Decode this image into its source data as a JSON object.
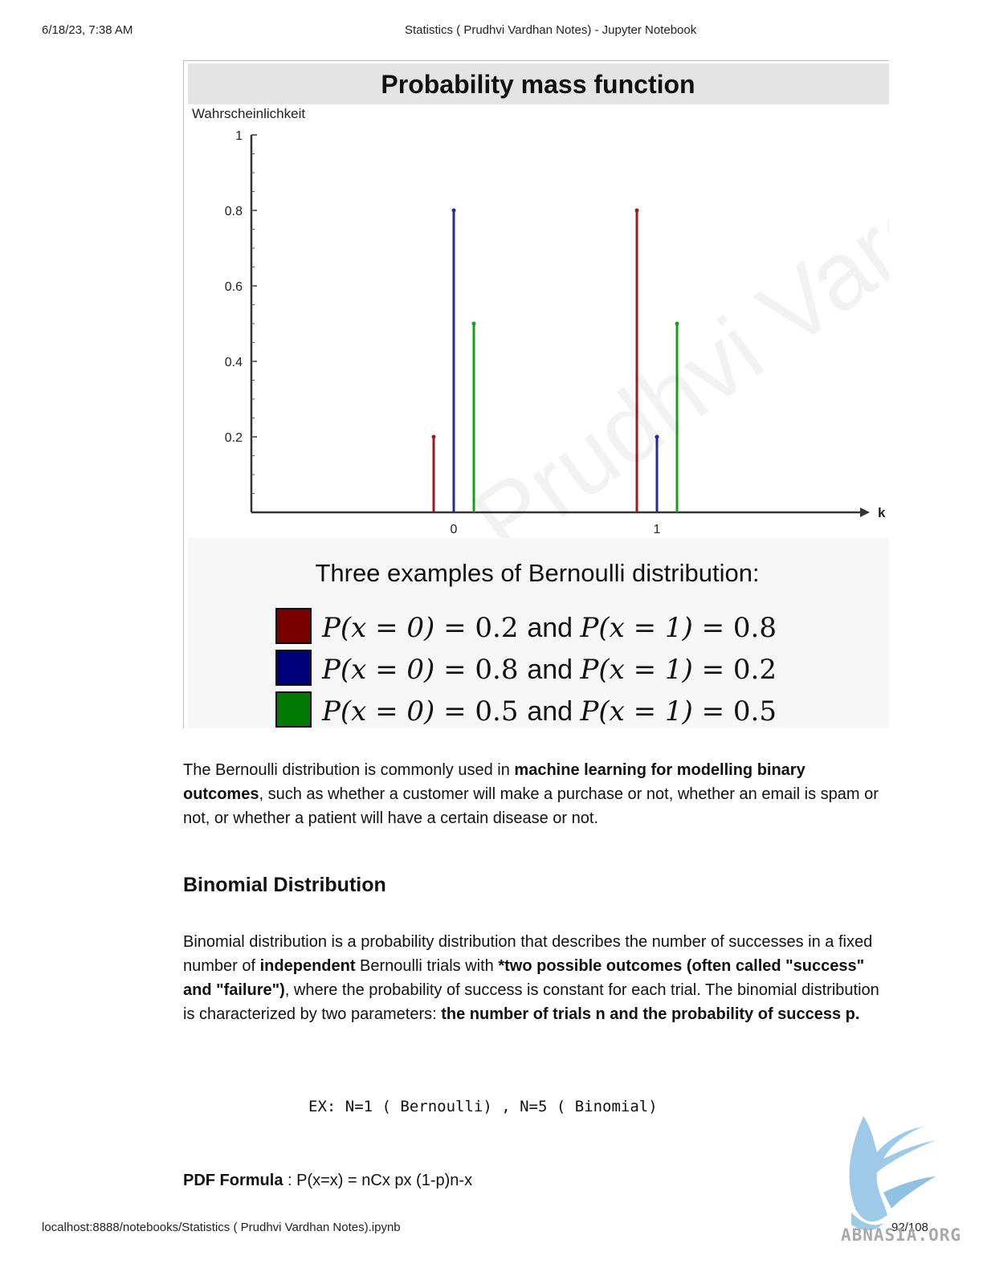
{
  "header": {
    "datetime": "6/18/23, 7:38 AM",
    "title": "Statistics ( Prudhvi Vardhan Notes) - Jupyter Notebook"
  },
  "footer": {
    "url": "localhost:8888/notebooks/Statistics ( Prudhvi Vardhan Notes).ipynb",
    "page": "92/108"
  },
  "figure": {
    "title": "Probability mass function",
    "ylabel": "Wahrscheinlichkeit",
    "xlabel": "k",
    "legend_title": "Three examples of Bernoulli distribution:",
    "legend": [
      {
        "color": "#7a0000",
        "p0": "0.2",
        "p1": "0.8"
      },
      {
        "color": "#00007a",
        "p0": "0.8",
        "p1": "0.2"
      },
      {
        "color": "#007a00",
        "p0": "0.5",
        "p1": "0.5"
      }
    ],
    "math_lhs": "P(x = 0) =",
    "math_mid": "P(x = 1) =",
    "and_word": "and",
    "watermark_text": "Prudhvi Vardhan"
  },
  "chart_data": {
    "type": "bar",
    "title": "Probability mass function",
    "ylabel": "Wahrscheinlichkeit",
    "xlabel": "k",
    "categories": [
      "0",
      "1"
    ],
    "ylim": [
      0,
      1
    ],
    "yticks": [
      "0.2",
      "0.4",
      "0.6",
      "0.8",
      "1"
    ],
    "series": [
      {
        "color": "#9b1c1c",
        "values": [
          0.2,
          0.8
        ]
      },
      {
        "color": "#2a2a9b",
        "values": [
          0.8,
          0.2
        ]
      },
      {
        "color": "#1e9b1e",
        "values": [
          0.5,
          0.5
        ]
      }
    ]
  },
  "content": {
    "para1": {
      "t1": "The Bernoulli distribution is commonly used in ",
      "b1": "machine learning for modelling binary outcomes",
      "t2": ", such as whether a customer will make a purchase or not, whether an email is spam or not, or whether a patient will have a certain disease or not."
    },
    "heading": "Binomial Distribution",
    "para2": {
      "t1": "Binomial distribution is a probability distribution that describes the number of successes in a fixed number of ",
      "b1": "independent",
      "t2": " Bernoulli trials with ",
      "b2": "*two possible outcomes (often called \"success\" and \"failure\")",
      "t3": ", where the probability of success is constant for each trial. The binomial distribution is characterized by two parameters: ",
      "b3": "the number of trials n and the probability of success p."
    },
    "code": "EX: N=1 ( Bernoulli) , N=5 ( Binomial)",
    "formula": {
      "label": "PDF Formula",
      "text": " : P(x=x) = nCx px (1-p)n-x"
    }
  },
  "watermark": {
    "text": "ABNASIA.ORG"
  }
}
